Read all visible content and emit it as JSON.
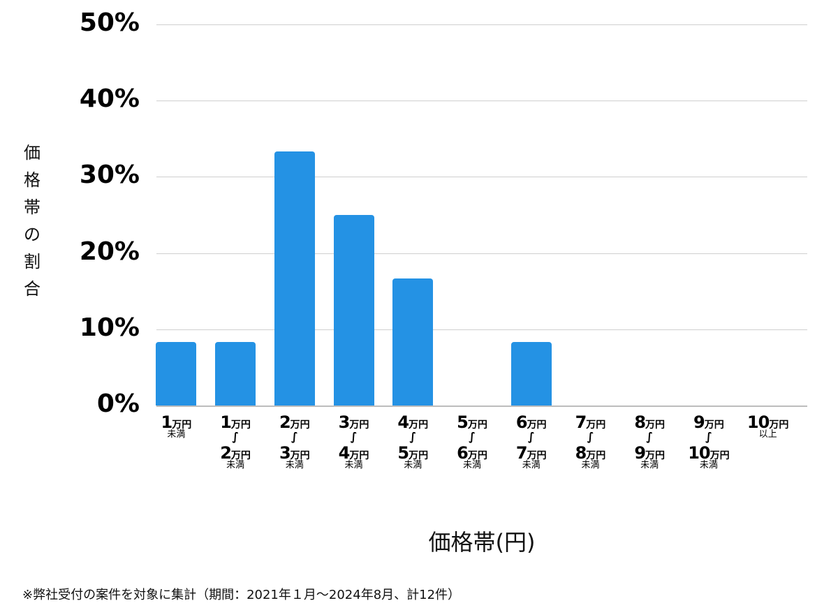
{
  "chart_data": {
    "type": "bar",
    "title": "",
    "xlabel": "価格帯(円)",
    "ylabel": "価格帯の割合",
    "ylim": [
      0,
      50
    ],
    "y_ticks": [
      "0%",
      "10%",
      "20%",
      "30%",
      "40%",
      "50%"
    ],
    "grid": true,
    "legend": null,
    "bar_color": "#2492e4",
    "categories": [
      "1万円未満",
      "1万円〜2万円未満",
      "2万円〜3万円未満",
      "3万円〜4万円未満",
      "4万円〜5万円未満",
      "5万円〜6万円未満",
      "6万円〜7万円未満",
      "7万円〜8万円未満",
      "8万円〜9万円未満",
      "9万円〜10万円未満",
      "10万円以上"
    ],
    "values": [
      8.33,
      8.33,
      33.33,
      25.0,
      16.67,
      0,
      8.33,
      0,
      0,
      0,
      0
    ],
    "annotations": [
      "※弊社受付の案件を対象に集計（期間：2021年１月〜2024年8月、計12件）"
    ]
  },
  "axis": {
    "ylabel_chars": [
      "価",
      "格",
      "帯",
      "の",
      "割",
      "合"
    ],
    "xlabel": "価格帯(円)",
    "y_ticks": [
      "0%",
      "10%",
      "20%",
      "30%",
      "40%",
      "50%"
    ]
  },
  "xticks": [
    {
      "from": "1",
      "to": null,
      "suffix": "未満"
    },
    {
      "from": "1",
      "to": "2",
      "suffix": "未満"
    },
    {
      "from": "2",
      "to": "3",
      "suffix": "未満"
    },
    {
      "from": "3",
      "to": "4",
      "suffix": "未満"
    },
    {
      "from": "4",
      "to": "5",
      "suffix": "未満"
    },
    {
      "from": "5",
      "to": "6",
      "suffix": "未満"
    },
    {
      "from": "6",
      "to": "7",
      "suffix": "未満"
    },
    {
      "from": "7",
      "to": "8",
      "suffix": "未満"
    },
    {
      "from": "8",
      "to": "9",
      "suffix": "未満"
    },
    {
      "from": "9",
      "to": "10",
      "suffix": "未満"
    },
    {
      "from": "10",
      "to": null,
      "suffix": "以上"
    }
  ],
  "unit_label": "万円",
  "tilde": "∫",
  "footnote": "※弊社受付の案件を対象に集計（期間：2021年１月〜2024年8月、計12件）"
}
